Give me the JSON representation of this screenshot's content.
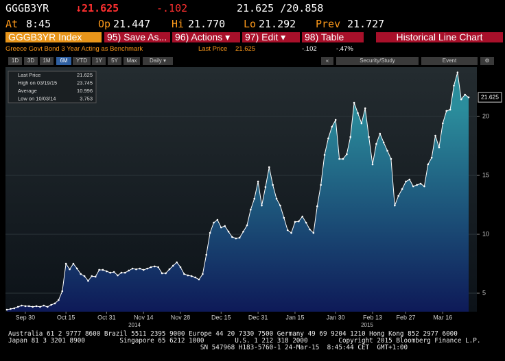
{
  "header": {
    "ticker": "GGGB3YR",
    "price": "↓21.625",
    "change": "-.102",
    "range": "21.625 /20.858",
    "stats": [
      {
        "label": "At",
        "value": "8:45"
      },
      {
        "label": "Op",
        "value": "21.447"
      },
      {
        "label": "Hi",
        "value": "21.770"
      },
      {
        "label": "Lo",
        "value": "21.292"
      },
      {
        "label": "Prev",
        "value": "21.727"
      }
    ]
  },
  "menu": {
    "security": "GGGB3YR Index",
    "buttons": [
      "95) Save As...",
      "96) Actions ▾",
      "97) Edit ▾",
      "98) Table"
    ],
    "view": "Historical Line Chart"
  },
  "info": {
    "description": "Greece Govt Bond 3 Year Acting as Benchmark",
    "last_label": "Last Price",
    "last_value": "21.625",
    "change": "-.102",
    "change_pct": "-.47%"
  },
  "toolbar": {
    "periods": [
      "1D",
      "3D",
      "1M",
      "6M",
      "YTD",
      "1Y",
      "5Y",
      "Max"
    ],
    "selected": "6M",
    "frequency": "Daily ▾",
    "collapse": "«",
    "study": "Security/Study",
    "event": "Event"
  },
  "legend": [
    {
      "label": "Last Price",
      "value": "21.625"
    },
    {
      "label": "High on 03/19/15",
      "value": "23.745"
    },
    {
      "label": "Average",
      "value": "10.996"
    },
    {
      "label": "Low on 10/03/14",
      "value": "3.753"
    }
  ],
  "chart": {
    "type": "line",
    "color": "#ffffff",
    "fill_top": "#2b8d9c",
    "fill_bottom": "#0e1a58",
    "categories": [
      null,
      null,
      null,
      null,
      null,
      "Sep 30",
      null,
      null,
      null,
      null,
      null,
      null,
      null,
      null,
      null,
      null,
      "Oct 15",
      null,
      null,
      null,
      null,
      null,
      null,
      null,
      null,
      null,
      null,
      "Oct 31",
      null,
      null,
      null,
      null,
      null,
      null,
      null,
      null,
      null,
      "Nov 14",
      null,
      null,
      null,
      null,
      null,
      null,
      null,
      null,
      null,
      "Nov 28",
      null,
      null,
      null,
      null,
      null,
      null,
      null,
      null,
      null,
      null,
      "Dec 15",
      null,
      null,
      null,
      null,
      null,
      null,
      null,
      null,
      null,
      "Dec 31",
      null,
      null,
      null,
      null,
      null,
      null,
      null,
      null,
      null,
      "Jan 15",
      null,
      null,
      null,
      null,
      null,
      null,
      null,
      null,
      null,
      null,
      "Jan 30",
      null,
      null,
      null,
      null,
      null,
      null,
      null,
      null,
      null,
      "Feb 13",
      null,
      null,
      null,
      null,
      null,
      null,
      null,
      null,
      "Feb 27",
      null,
      null,
      null,
      null,
      null,
      null,
      null,
      null,
      null,
      "Mar 16",
      null,
      null,
      null,
      null,
      null,
      null,
      null
    ],
    "years": [
      "2014",
      "2015"
    ],
    "series": [
      {
        "name": "Last Price",
        "values": [
          3.6,
          3.66,
          3.72,
          3.84,
          3.95,
          3.9,
          3.9,
          3.84,
          3.9,
          3.84,
          3.95,
          3.84,
          4.01,
          4.13,
          4.42,
          5.17,
          7.5,
          7.03,
          7.5,
          7.09,
          6.63,
          6.45,
          6.05,
          6.45,
          6.4,
          6.98,
          6.98,
          6.86,
          6.74,
          6.8,
          6.51,
          6.74,
          6.74,
          6.92,
          7.09,
          7.03,
          7.09,
          6.98,
          7.09,
          7.21,
          7.27,
          7.21,
          6.69,
          6.69,
          7.03,
          7.33,
          7.62,
          7.21,
          6.63,
          6.51,
          6.45,
          6.34,
          6.16,
          6.63,
          8.26,
          10.12,
          10.99,
          11.22,
          10.58,
          10.7,
          10.23,
          9.77,
          9.65,
          9.71,
          10.23,
          10.76,
          12.09,
          13.02,
          14.48,
          12.44,
          14.01,
          15.7,
          14.19,
          13.02,
          12.44,
          11.4,
          10.35,
          10.12,
          11.05,
          11.1,
          11.51,
          10.99,
          10.41,
          10.12,
          12.38,
          14.19,
          16.74,
          18.14,
          19.13,
          19.71,
          16.4,
          16.4,
          16.8,
          18.26,
          21.16,
          20.29,
          19.42,
          20.7,
          18.26,
          15.93,
          17.67,
          18.55,
          17.79,
          17.09,
          16.4,
          12.44,
          13.26,
          13.84,
          14.48,
          14.65,
          14.07,
          14.19,
          14.3,
          14.07,
          15.93,
          16.51,
          18.37,
          17.38,
          19.42,
          20.47,
          20.58,
          22.62,
          23.745,
          21.45,
          21.86,
          21.625
        ]
      }
    ],
    "last_price": 21.625,
    "ylim": [
      3.43,
      24.19
    ],
    "yticks": [
      5,
      10,
      15,
      20
    ],
    "grid": true
  },
  "footer": [
    "Australia 61 2 9777 8600 Brazil 5511 2395 9000 Europe 44 20 7330 7500 Germany 49 69 9204 1210 Hong Kong 852 2977 6000",
    "Japan 81 3 3201 8900         Singapore 65 6212 1000        U.S. 1 212 318 2000        Copyright 2015 Bloomberg Finance L.P.",
    "                                                  SN 547968 H183-5760-1 24-Mar-15  8:45:44 CET  GMT+1:00"
  ]
}
